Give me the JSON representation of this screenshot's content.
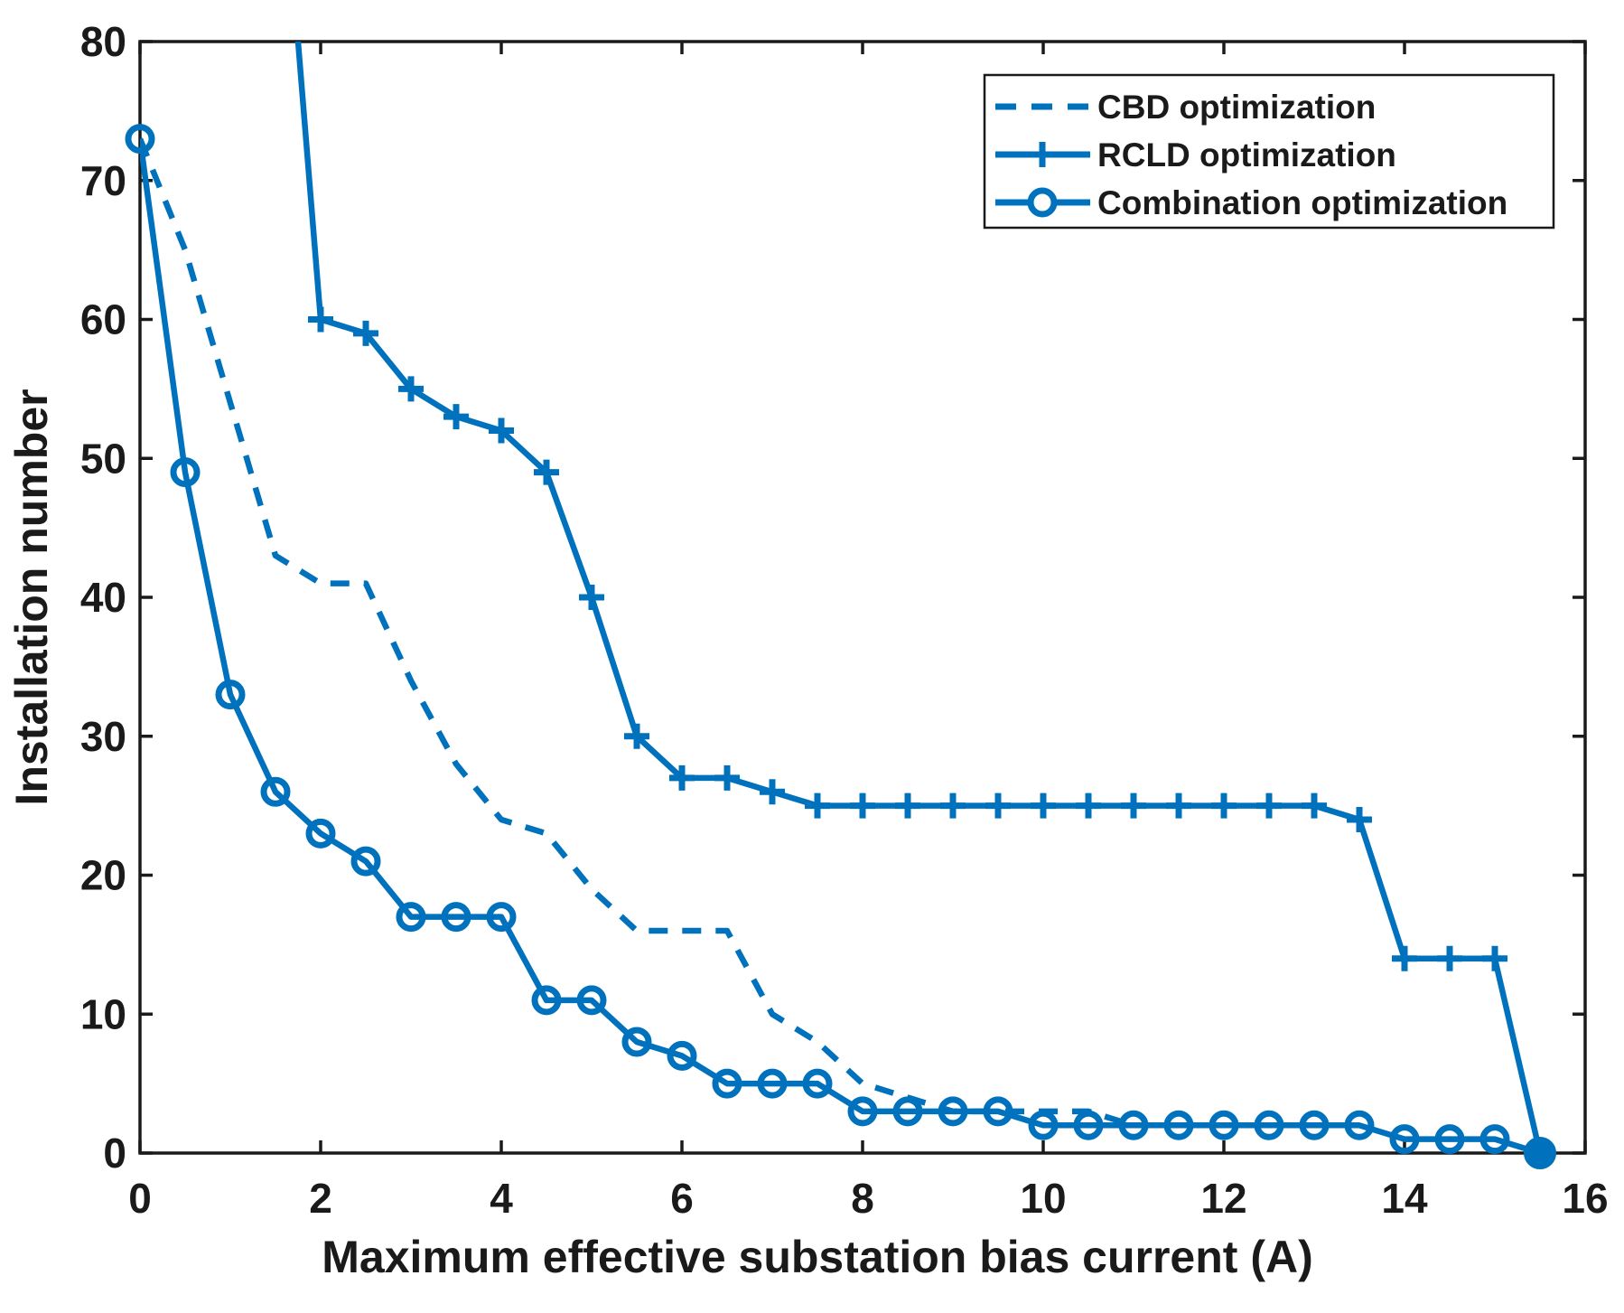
{
  "chart_data": {
    "type": "line",
    "title": "",
    "xlabel": "Maximum effective substation bias current (A)",
    "ylabel": "Installation number",
    "xlim": [
      0,
      16
    ],
    "ylim": [
      0,
      80
    ],
    "xticks": [
      0,
      2,
      4,
      6,
      8,
      10,
      12,
      14,
      16
    ],
    "yticks": [
      0,
      10,
      20,
      30,
      40,
      50,
      60,
      70,
      80
    ],
    "grid": false,
    "legend_position": "top-right",
    "line_color": "#0072BD",
    "axis_color": "#1a1a1a",
    "series": [
      {
        "name": "CBD optimization",
        "style": "dashed",
        "marker": "none",
        "x": [
          0,
          0.5,
          1,
          1.5,
          2,
          2.5,
          3,
          3.5,
          4,
          4.5,
          5,
          5.5,
          6,
          6.5,
          7,
          7.5,
          8,
          8.5,
          9,
          9.5,
          10,
          10.5,
          11
        ],
        "y": [
          73,
          65,
          54,
          43,
          41,
          41,
          34,
          28,
          24,
          23,
          19,
          16,
          16,
          16,
          10,
          8,
          5,
          4,
          3,
          3,
          3,
          3,
          2
        ]
      },
      {
        "name": "RCLD optimization",
        "style": "solid",
        "marker": "plus",
        "clipped_above_ymax": true,
        "x": [
          1.5,
          2,
          2.5,
          3,
          3.5,
          4,
          4.5,
          5,
          5.5,
          6,
          6.5,
          7,
          7.5,
          8,
          8.5,
          9,
          9.5,
          10,
          10.5,
          11,
          11.5,
          12,
          12.5,
          13,
          13.5,
          14,
          14.5,
          15,
          15.5
        ],
        "y": [
          100,
          60,
          59,
          55,
          53,
          52,
          49,
          40,
          30,
          27,
          27,
          26,
          25,
          25,
          25,
          25,
          25,
          25,
          25,
          25,
          25,
          25,
          25,
          25,
          24,
          14,
          14,
          14,
          0
        ]
      },
      {
        "name": "Combination optimization",
        "style": "solid",
        "marker": "circle",
        "final_point_filled": true,
        "x": [
          0,
          0.5,
          1,
          1.5,
          2,
          2.5,
          3,
          3.5,
          4,
          4.5,
          5,
          5.5,
          6,
          6.5,
          7,
          7.5,
          8,
          8.5,
          9,
          9.5,
          10,
          10.5,
          11,
          11.5,
          12,
          12.5,
          13,
          13.5,
          14,
          14.5,
          15,
          15.5
        ],
        "y": [
          73,
          49,
          33,
          26,
          23,
          21,
          17,
          17,
          17,
          11,
          11,
          8,
          7,
          5,
          5,
          5,
          3,
          3,
          3,
          3,
          2,
          2,
          2,
          2,
          2,
          2,
          2,
          2,
          1,
          1,
          1,
          0
        ]
      }
    ]
  }
}
